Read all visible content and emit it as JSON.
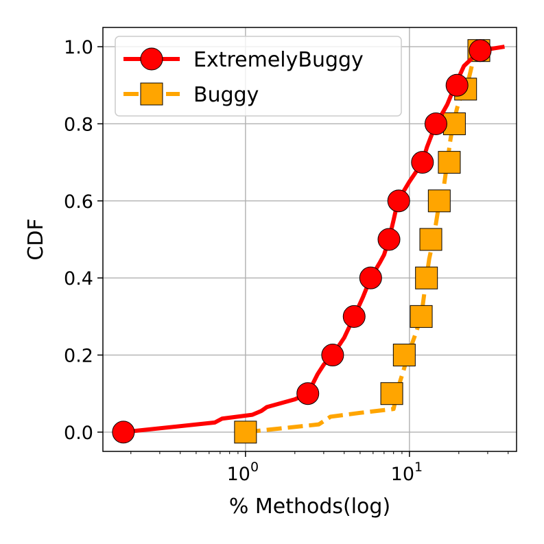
{
  "chart_data": {
    "type": "line",
    "xscale": "log",
    "xlim": [
      0.135,
      45
    ],
    "ylim": [
      -0.05,
      1.05
    ],
    "xlabel": "% Methods(log)",
    "ylabel": "CDF",
    "grid": true,
    "legend_position": "top-left",
    "x_ticks": [
      {
        "value": 1,
        "label": "10",
        "exp": "0"
      },
      {
        "value": 10,
        "label": "10",
        "exp": "1"
      }
    ],
    "y_ticks": [
      {
        "value": 0.0,
        "label": "0.0"
      },
      {
        "value": 0.2,
        "label": "0.2"
      },
      {
        "value": 0.4,
        "label": "0.4"
      },
      {
        "value": 0.6,
        "label": "0.6"
      },
      {
        "value": 0.8,
        "label": "0.8"
      },
      {
        "value": 1.0,
        "label": "1.0"
      }
    ],
    "series": [
      {
        "name": "ExtremelyBuggy",
        "color": "#ff0000",
        "linestyle": "solid",
        "marker": "circle",
        "line": [
          [
            0.18,
            0.0
          ],
          [
            0.65,
            0.025
          ],
          [
            0.72,
            0.035
          ],
          [
            1.1,
            0.045
          ],
          [
            1.25,
            0.055
          ],
          [
            1.35,
            0.065
          ],
          [
            2.0,
            0.085
          ],
          [
            2.4,
            0.1
          ],
          [
            2.75,
            0.15
          ],
          [
            3.0,
            0.175
          ],
          [
            3.4,
            0.2
          ],
          [
            4.0,
            0.245
          ],
          [
            4.6,
            0.3
          ],
          [
            5.2,
            0.35
          ],
          [
            5.8,
            0.4
          ],
          [
            6.6,
            0.44
          ],
          [
            7.0,
            0.46
          ],
          [
            7.5,
            0.5
          ],
          [
            8.0,
            0.55
          ],
          [
            8.5,
            0.6
          ],
          [
            10.0,
            0.65
          ],
          [
            12.0,
            0.7
          ],
          [
            12.8,
            0.74
          ],
          [
            14.5,
            0.8
          ],
          [
            16.0,
            0.83
          ],
          [
            17.0,
            0.85
          ],
          [
            19.0,
            0.9
          ],
          [
            21.5,
            0.95
          ],
          [
            27.0,
            0.99
          ],
          [
            38.0,
            1.0
          ]
        ],
        "markers": [
          [
            0.18,
            0.0
          ],
          [
            2.4,
            0.1
          ],
          [
            3.4,
            0.2
          ],
          [
            4.6,
            0.3
          ],
          [
            5.8,
            0.4
          ],
          [
            7.5,
            0.5
          ],
          [
            8.6,
            0.6
          ],
          [
            12.0,
            0.7
          ],
          [
            14.5,
            0.8
          ],
          [
            19.5,
            0.9
          ],
          [
            27.0,
            0.99
          ]
        ]
      },
      {
        "name": "Buggy",
        "color": "#ffa500",
        "linestyle": "dashed",
        "marker": "square",
        "line": [
          [
            1.0,
            0.0
          ],
          [
            2.8,
            0.02
          ],
          [
            3.3,
            0.04
          ],
          [
            5.0,
            0.05
          ],
          [
            8.0,
            0.06
          ],
          [
            8.6,
            0.12
          ],
          [
            9.2,
            0.16
          ],
          [
            9.8,
            0.2
          ],
          [
            11.0,
            0.26
          ],
          [
            11.8,
            0.3
          ],
          [
            12.5,
            0.38
          ],
          [
            13.2,
            0.45
          ],
          [
            14.0,
            0.5
          ],
          [
            15.0,
            0.58
          ],
          [
            16.0,
            0.62
          ],
          [
            17.0,
            0.7
          ],
          [
            17.8,
            0.76
          ],
          [
            18.5,
            0.8
          ],
          [
            19.5,
            0.84
          ],
          [
            20.5,
            0.87
          ],
          [
            22.5,
            0.9
          ],
          [
            24.0,
            0.95
          ],
          [
            27.0,
            0.99
          ]
        ],
        "markers": [
          [
            1.0,
            0.0
          ],
          [
            7.8,
            0.1
          ],
          [
            9.3,
            0.2
          ],
          [
            11.8,
            0.3
          ],
          [
            12.7,
            0.4
          ],
          [
            13.5,
            0.5
          ],
          [
            15.2,
            0.6
          ],
          [
            17.5,
            0.7
          ],
          [
            18.8,
            0.8
          ],
          [
            22.0,
            0.89
          ],
          [
            26.5,
            0.99
          ]
        ]
      }
    ]
  }
}
